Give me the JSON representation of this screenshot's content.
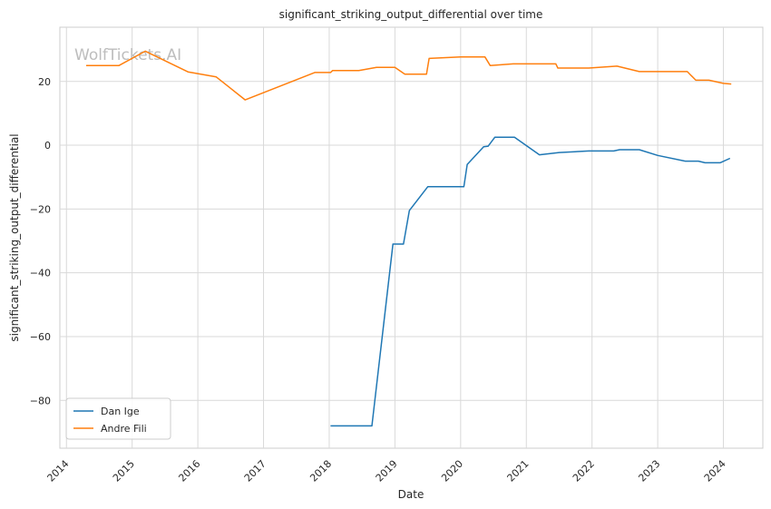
{
  "chart_data": {
    "type": "line",
    "title": "significant_striking_output_differential over time",
    "xlabel": "Date",
    "ylabel": "significant_striking_output_differential",
    "watermark": "WolfTickets.AI",
    "xlim": [
      2013.9,
      2024.6
    ],
    "ylim": [
      -95,
      37
    ],
    "x_ticks": [
      2014,
      2015,
      2016,
      2017,
      2018,
      2019,
      2020,
      2021,
      2022,
      2023,
      2024
    ],
    "y_ticks": [
      -80,
      -60,
      -40,
      -20,
      0,
      20
    ],
    "grid": true,
    "legend_position": "lower-left",
    "series": [
      {
        "name": "Dan Ige",
        "color": "#1f77b4",
        "points": [
          [
            2018.02,
            -88
          ],
          [
            2018.65,
            -88
          ],
          [
            2018.97,
            -31
          ],
          [
            2019.13,
            -31
          ],
          [
            2019.22,
            -20.5
          ],
          [
            2019.5,
            -13
          ],
          [
            2020.05,
            -13
          ],
          [
            2020.1,
            -6
          ],
          [
            2020.35,
            -0.5
          ],
          [
            2020.42,
            -0.3
          ],
          [
            2020.52,
            2.5
          ],
          [
            2020.82,
            2.5
          ],
          [
            2021.2,
            -3
          ],
          [
            2021.5,
            -2.3
          ],
          [
            2021.95,
            -1.8
          ],
          [
            2022.33,
            -1.8
          ],
          [
            2022.42,
            -1.4
          ],
          [
            2022.72,
            -1.4
          ],
          [
            2023.0,
            -3.2
          ],
          [
            2023.42,
            -5
          ],
          [
            2023.62,
            -5
          ],
          [
            2023.72,
            -5.5
          ],
          [
            2023.95,
            -5.5
          ],
          [
            2024.1,
            -4.1
          ]
        ]
      },
      {
        "name": "Andre Fili",
        "color": "#ff7f0e",
        "points": [
          [
            2014.3,
            25
          ],
          [
            2014.8,
            25
          ],
          [
            2015.2,
            29.5
          ],
          [
            2015.85,
            23
          ],
          [
            2016.28,
            21.4
          ],
          [
            2016.72,
            14.2
          ],
          [
            2017.78,
            22.8
          ],
          [
            2018.02,
            22.8
          ],
          [
            2018.05,
            23.4
          ],
          [
            2018.45,
            23.4
          ],
          [
            2018.72,
            24.4
          ],
          [
            2019.0,
            24.4
          ],
          [
            2019.15,
            22.3
          ],
          [
            2019.48,
            22.3
          ],
          [
            2019.52,
            27.2
          ],
          [
            2020.0,
            27.7
          ],
          [
            2020.37,
            27.7
          ],
          [
            2020.45,
            25
          ],
          [
            2020.8,
            25.5
          ],
          [
            2021.45,
            25.5
          ],
          [
            2021.48,
            24.2
          ],
          [
            2021.95,
            24.2
          ],
          [
            2022.38,
            24.8
          ],
          [
            2022.72,
            23.1
          ],
          [
            2023.45,
            23.1
          ],
          [
            2023.58,
            20.4
          ],
          [
            2023.78,
            20.4
          ],
          [
            2024.0,
            19.4
          ],
          [
            2024.12,
            19.2
          ]
        ]
      }
    ]
  }
}
